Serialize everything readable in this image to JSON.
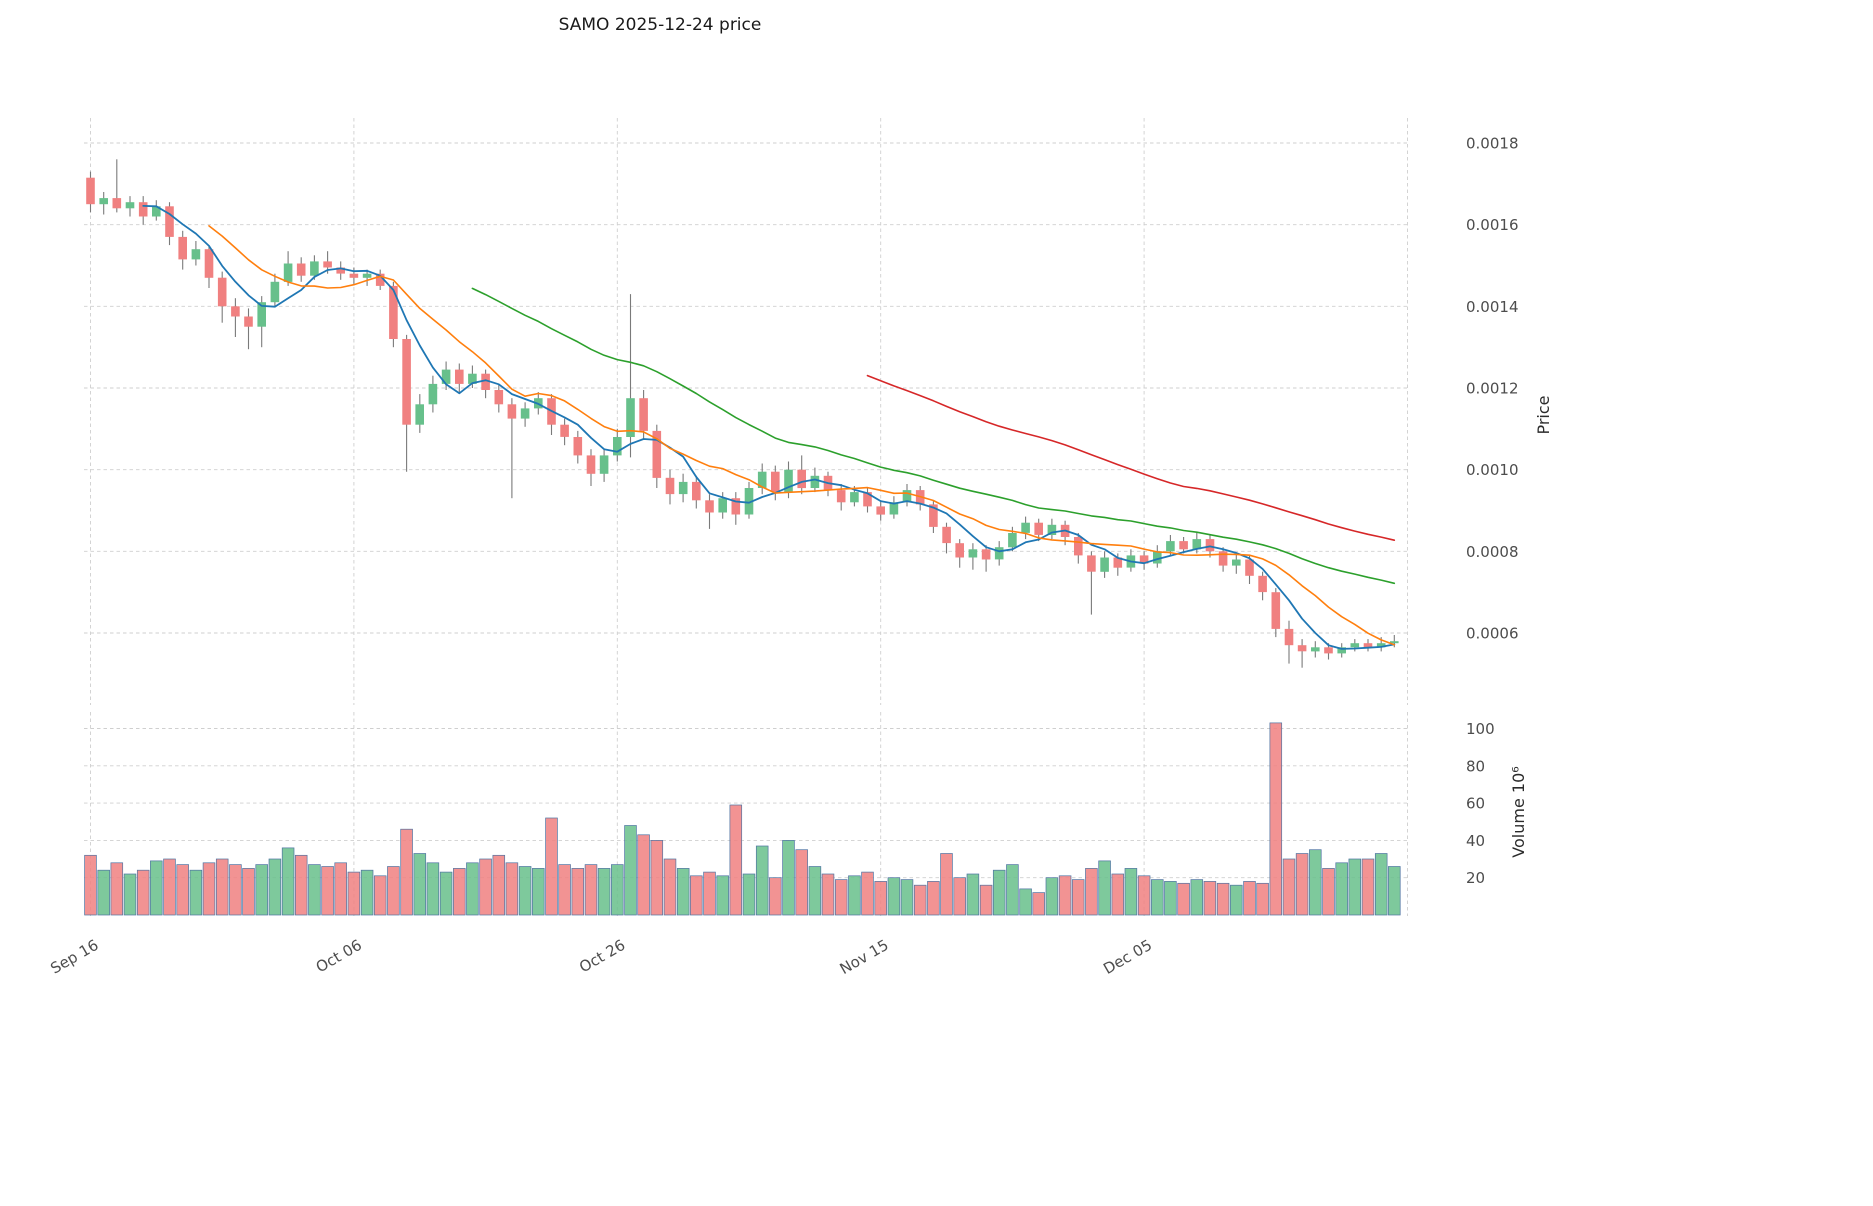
{
  "chart_data": {
    "type": "candlestick",
    "title": "SAMO  2025-12-24  price",
    "ylabel": "Price",
    "ylabel_volume": "Volume  10⁶",
    "grid": true,
    "legend": "none",
    "mav": [
      5,
      10,
      30,
      60
    ],
    "x_axis": {
      "ticks": [
        {
          "label": "Sep 16",
          "day": 0
        },
        {
          "label": "Oct 06",
          "day": 20
        },
        {
          "label": "Oct 26",
          "day": 40
        },
        {
          "label": "Nov 15",
          "day": 60
        },
        {
          "label": "Dec 05",
          "day": 80
        }
      ]
    },
    "y_axis": {
      "ticks": [
        {
          "label": "0.0018",
          "value": 0.0018
        },
        {
          "label": "0.0016",
          "value": 0.0016
        },
        {
          "label": "0.0014",
          "value": 0.0014
        },
        {
          "label": "0.0012",
          "value": 0.0012
        },
        {
          "label": "0.0010",
          "value": 0.001
        },
        {
          "label": "0.0008",
          "value": 0.0008
        },
        {
          "label": "0.0006",
          "value": 0.0006
        }
      ],
      "lim": [
        0.00042,
        0.00187
      ]
    },
    "volume_axis": {
      "ticks": [
        {
          "label": "100",
          "value": 100
        },
        {
          "label": "80",
          "value": 80
        },
        {
          "label": "60",
          "value": 60
        },
        {
          "label": "40",
          "value": 40
        },
        {
          "label": "20",
          "value": 20
        }
      ],
      "lim": [
        0,
        110
      ]
    },
    "colors": {
      "up": "#67c08b",
      "down": "#f08080",
      "wick": "#7a7a7a",
      "volume_edge": "#4f74a3",
      "ma": [
        "#1f77b4",
        "#ff7f0e",
        "#2ca02c",
        "#d62728"
      ],
      "grid": "#cfcfcf",
      "tick_text": "#4d4d4d"
    },
    "ohlcv_columns": [
      "date",
      "open",
      "high",
      "low",
      "close",
      "volume_millions"
    ],
    "ohlcv": [
      [
        "2025-09-16",
        0.001715,
        0.00173,
        0.00163,
        0.00165,
        32
      ],
      [
        "2025-09-17",
        0.00165,
        0.00168,
        0.001625,
        0.001665,
        24
      ],
      [
        "2025-09-18",
        0.001665,
        0.00176,
        0.00163,
        0.00164,
        28
      ],
      [
        "2025-09-19",
        0.00164,
        0.00167,
        0.00162,
        0.001655,
        22
      ],
      [
        "2025-09-20",
        0.001655,
        0.00167,
        0.0016,
        0.00162,
        24
      ],
      [
        "2025-09-21",
        0.00162,
        0.00166,
        0.00161,
        0.001645,
        29
      ],
      [
        "2025-09-22",
        0.001645,
        0.001655,
        0.00155,
        0.00157,
        30
      ],
      [
        "2025-09-23",
        0.00157,
        0.001585,
        0.00149,
        0.001515,
        27
      ],
      [
        "2025-09-24",
        0.001515,
        0.00156,
        0.0015,
        0.00154,
        24
      ],
      [
        "2025-09-25",
        0.00154,
        0.00155,
        0.001445,
        0.00147,
        28
      ],
      [
        "2025-09-26",
        0.00147,
        0.001485,
        0.00136,
        0.0014,
        30
      ],
      [
        "2025-09-27",
        0.0014,
        0.00142,
        0.001325,
        0.001375,
        27
      ],
      [
        "2025-09-28",
        0.001375,
        0.001395,
        0.001295,
        0.00135,
        25
      ],
      [
        "2025-09-29",
        0.00135,
        0.001425,
        0.0013,
        0.00141,
        27
      ],
      [
        "2025-09-30",
        0.00141,
        0.00148,
        0.0014,
        0.00146,
        30
      ],
      [
        "2025-10-01",
        0.00146,
        0.001535,
        0.00145,
        0.001505,
        36
      ],
      [
        "2025-10-02",
        0.001505,
        0.00152,
        0.00146,
        0.001475,
        32
      ],
      [
        "2025-10-03",
        0.001475,
        0.001525,
        0.001465,
        0.00151,
        27
      ],
      [
        "2025-10-04",
        0.00151,
        0.001535,
        0.00148,
        0.001495,
        26
      ],
      [
        "2025-10-05",
        0.001495,
        0.00151,
        0.001465,
        0.00148,
        28
      ],
      [
        "2025-10-06",
        0.00148,
        0.001495,
        0.001455,
        0.00147,
        23
      ],
      [
        "2025-10-07",
        0.00147,
        0.00149,
        0.00145,
        0.00148,
        24
      ],
      [
        "2025-10-08",
        0.00148,
        0.00149,
        0.00144,
        0.00145,
        21
      ],
      [
        "2025-10-09",
        0.00145,
        0.00146,
        0.0013,
        0.00132,
        26
      ],
      [
        "2025-10-10",
        0.00132,
        0.00133,
        0.000995,
        0.00111,
        46
      ],
      [
        "2025-10-11",
        0.00111,
        0.001185,
        0.00109,
        0.00116,
        33
      ],
      [
        "2025-10-12",
        0.00116,
        0.00123,
        0.00114,
        0.00121,
        28
      ],
      [
        "2025-10-13",
        0.00121,
        0.001265,
        0.001195,
        0.001245,
        23
      ],
      [
        "2025-10-14",
        0.001245,
        0.00126,
        0.00119,
        0.00121,
        25
      ],
      [
        "2025-10-15",
        0.00121,
        0.001255,
        0.0012,
        0.001235,
        28
      ],
      [
        "2025-10-16",
        0.001235,
        0.001245,
        0.001175,
        0.001195,
        30
      ],
      [
        "2025-10-17",
        0.001195,
        0.00121,
        0.00114,
        0.00116,
        32
      ],
      [
        "2025-10-18",
        0.00116,
        0.001175,
        0.00093,
        0.001125,
        28
      ],
      [
        "2025-10-19",
        0.001125,
        0.001165,
        0.001105,
        0.00115,
        26
      ],
      [
        "2025-10-20",
        0.00115,
        0.00119,
        0.001135,
        0.001175,
        25
      ],
      [
        "2025-10-21",
        0.001175,
        0.001185,
        0.001085,
        0.00111,
        52
      ],
      [
        "2025-10-22",
        0.00111,
        0.001125,
        0.00106,
        0.00108,
        27
      ],
      [
        "2025-10-23",
        0.00108,
        0.001095,
        0.001015,
        0.001035,
        25
      ],
      [
        "2025-10-24",
        0.001035,
        0.00105,
        0.00096,
        0.00099,
        27
      ],
      [
        "2025-10-25",
        0.00099,
        0.00105,
        0.00097,
        0.001035,
        25
      ],
      [
        "2025-10-26",
        0.001035,
        0.0011,
        0.00102,
        0.00108,
        27
      ],
      [
        "2025-10-27",
        0.00108,
        0.00143,
        0.00103,
        0.001175,
        48
      ],
      [
        "2025-10-28",
        0.001175,
        0.001195,
        0.001075,
        0.001095,
        43
      ],
      [
        "2025-10-29",
        0.001095,
        0.00111,
        0.000955,
        0.00098,
        40
      ],
      [
        "2025-10-30",
        0.00098,
        0.001,
        0.000915,
        0.00094,
        30
      ],
      [
        "2025-10-31",
        0.00094,
        0.00099,
        0.00092,
        0.00097,
        25
      ],
      [
        "2025-11-01",
        0.00097,
        0.000985,
        0.000905,
        0.000925,
        21
      ],
      [
        "2025-11-02",
        0.000925,
        0.00094,
        0.000855,
        0.000895,
        23
      ],
      [
        "2025-11-03",
        0.000895,
        0.000945,
        0.00088,
        0.00093,
        21
      ],
      [
        "2025-11-04",
        0.00093,
        0.000945,
        0.000865,
        0.00089,
        59
      ],
      [
        "2025-11-05",
        0.00089,
        0.00097,
        0.00088,
        0.000955,
        22
      ],
      [
        "2025-11-06",
        0.000955,
        0.001015,
        0.00094,
        0.000995,
        37
      ],
      [
        "2025-11-07",
        0.000995,
        0.00101,
        0.000925,
        0.000945,
        20
      ],
      [
        "2025-11-08",
        0.000945,
        0.00102,
        0.00093,
        0.001,
        40
      ],
      [
        "2025-11-09",
        0.001,
        0.001035,
        0.00094,
        0.000955,
        35
      ],
      [
        "2025-11-10",
        0.000955,
        0.001005,
        0.000945,
        0.000985,
        26
      ],
      [
        "2025-11-11",
        0.000985,
        0.000995,
        0.000935,
        0.00095,
        22
      ],
      [
        "2025-11-12",
        0.00095,
        0.000965,
        0.0009,
        0.00092,
        19
      ],
      [
        "2025-11-13",
        0.00092,
        0.00096,
        0.00091,
        0.000945,
        21
      ],
      [
        "2025-11-14",
        0.000945,
        0.000955,
        0.000895,
        0.00091,
        23
      ],
      [
        "2025-11-15",
        0.00091,
        0.000925,
        0.000875,
        0.00089,
        18
      ],
      [
        "2025-11-16",
        0.00089,
        0.000935,
        0.00088,
        0.00092,
        20
      ],
      [
        "2025-11-17",
        0.00092,
        0.000965,
        0.00091,
        0.00095,
        19
      ],
      [
        "2025-11-18",
        0.00095,
        0.00096,
        0.0009,
        0.000915,
        16
      ],
      [
        "2025-11-19",
        0.000915,
        0.000925,
        0.000845,
        0.00086,
        18
      ],
      [
        "2025-11-20",
        0.00086,
        0.00087,
        0.000795,
        0.00082,
        33
      ],
      [
        "2025-11-21",
        0.00082,
        0.00083,
        0.00076,
        0.000785,
        20
      ],
      [
        "2025-11-22",
        0.000785,
        0.00082,
        0.000755,
        0.000805,
        22
      ],
      [
        "2025-11-23",
        0.000805,
        0.000815,
        0.00075,
        0.00078,
        16
      ],
      [
        "2025-11-24",
        0.00078,
        0.000825,
        0.000765,
        0.00081,
        24
      ],
      [
        "2025-11-25",
        0.00081,
        0.00086,
        0.0008,
        0.000845,
        27
      ],
      [
        "2025-11-26",
        0.000845,
        0.000885,
        0.00083,
        0.00087,
        14
      ],
      [
        "2025-11-27",
        0.00087,
        0.00088,
        0.000825,
        0.00084,
        12
      ],
      [
        "2025-11-28",
        0.00084,
        0.00088,
        0.00083,
        0.000865,
        20
      ],
      [
        "2025-11-29",
        0.000865,
        0.000875,
        0.000815,
        0.000835,
        21
      ],
      [
        "2025-11-30",
        0.000835,
        0.000845,
        0.00077,
        0.00079,
        19
      ],
      [
        "2025-12-01",
        0.00079,
        0.0008,
        0.000645,
        0.00075,
        25
      ],
      [
        "2025-12-02",
        0.00075,
        0.0008,
        0.000735,
        0.000785,
        29
      ],
      [
        "2025-12-03",
        0.000785,
        0.000795,
        0.00074,
        0.00076,
        22
      ],
      [
        "2025-12-04",
        0.00076,
        0.000805,
        0.00075,
        0.00079,
        25
      ],
      [
        "2025-12-05",
        0.00079,
        0.0008,
        0.000755,
        0.00077,
        21
      ],
      [
        "2025-12-06",
        0.00077,
        0.000815,
        0.00076,
        0.0008,
        19
      ],
      [
        "2025-12-07",
        0.0008,
        0.00084,
        0.00079,
        0.000825,
        18
      ],
      [
        "2025-12-08",
        0.000825,
        0.000835,
        0.000795,
        0.000805,
        17
      ],
      [
        "2025-12-09",
        0.000805,
        0.000845,
        0.000795,
        0.00083,
        19
      ],
      [
        "2025-12-10",
        0.00083,
        0.00084,
        0.000785,
        0.0008,
        18
      ],
      [
        "2025-12-11",
        0.0008,
        0.00081,
        0.00075,
        0.000765,
        17
      ],
      [
        "2025-12-12",
        0.000765,
        0.000795,
        0.000745,
        0.00078,
        16
      ],
      [
        "2025-12-13",
        0.00078,
        0.00079,
        0.00072,
        0.00074,
        18
      ],
      [
        "2025-12-14",
        0.00074,
        0.00075,
        0.00068,
        0.0007,
        17
      ],
      [
        "2025-12-15",
        0.0007,
        0.00071,
        0.00059,
        0.00061,
        103
      ],
      [
        "2025-12-16",
        0.00061,
        0.00063,
        0.000525,
        0.00057,
        30
      ],
      [
        "2025-12-17",
        0.00057,
        0.000585,
        0.000515,
        0.000555,
        33
      ],
      [
        "2025-12-18",
        0.000555,
        0.00058,
        0.00054,
        0.000565,
        35
      ],
      [
        "2025-12-19",
        0.000565,
        0.000575,
        0.000535,
        0.00055,
        25
      ],
      [
        "2025-12-20",
        0.00055,
        0.000575,
        0.00054,
        0.000565,
        28
      ],
      [
        "2025-12-21",
        0.000565,
        0.000585,
        0.000555,
        0.000575,
        30
      ],
      [
        "2025-12-22",
        0.000575,
        0.000585,
        0.000555,
        0.000565,
        30
      ],
      [
        "2025-12-23",
        0.000565,
        0.00059,
        0.000555,
        0.000575,
        33
      ],
      [
        "2025-12-24",
        0.000575,
        0.000595,
        0.000565,
        0.00058,
        26
      ]
    ]
  }
}
